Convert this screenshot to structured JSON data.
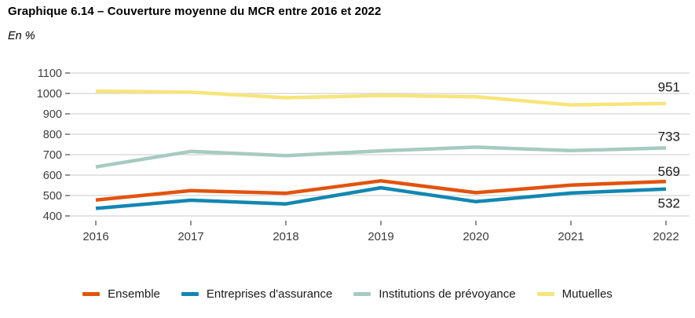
{
  "header": {
    "title": "Graphique 6.14 – Couverture moyenne du MCR entre 2016 et 2022",
    "unit_label": "En %"
  },
  "colors": {
    "ensemble": "#E2530D",
    "assurance": "#1287B2",
    "prevoyance": "#A6CBC0",
    "mutuelles": "#F7E57C",
    "gridline": "#D3D3D3",
    "tick": "#6E6E6E",
    "axis_text": "#3C3C3C",
    "end_label_text": "#1A1A1A"
  },
  "chart_data": {
    "type": "line",
    "title": "Couverture moyenne du MCR entre 2016 et 2022",
    "unit": "En %",
    "x": [
      2016,
      2017,
      2018,
      2019,
      2020,
      2021,
      2022
    ],
    "x_tick_labels": [
      "2016",
      "2017",
      "2018",
      "2019",
      "2020",
      "2021",
      "2022"
    ],
    "ylim": [
      400,
      1100
    ],
    "y_ticks": [
      400,
      500,
      600,
      700,
      800,
      900,
      1000,
      1100
    ],
    "y_tick_labels": [
      "400",
      "500",
      "600",
      "700",
      "800",
      "900",
      "1000",
      "1100"
    ],
    "grid": "horizontal",
    "legend_position": "bottom",
    "series": [
      {
        "name": "Mutuelles",
        "color_key": "mutuelles",
        "values": [
          1011,
          1006,
          979,
          990,
          984,
          944,
          951
        ],
        "end_label": "951",
        "end_label_offset": -15
      },
      {
        "name": "Institutions de prévoyance",
        "color_key": "prevoyance",
        "values": [
          640,
          716,
          695,
          719,
          737,
          720,
          733
        ],
        "end_label": "733",
        "end_label_offset": -9
      },
      {
        "name": "Entreprises d'assurance",
        "color_key": "assurance",
        "values": [
          437,
          477,
          459,
          538,
          470,
          512,
          532
        ],
        "end_label": "532",
        "end_label_offset": 24
      },
      {
        "name": "Ensemble",
        "color_key": "ensemble",
        "values": [
          478,
          524,
          511,
          572,
          514,
          551,
          569
        ],
        "end_label": "569",
        "end_label_offset": -7
      }
    ]
  },
  "legend": {
    "items": [
      {
        "label": "Ensemble",
        "color_key": "ensemble"
      },
      {
        "label": "Entreprises d'assurance",
        "color_key": "assurance"
      },
      {
        "label": "Institutions de prévoyance",
        "color_key": "prevoyance"
      },
      {
        "label": "Mutuelles",
        "color_key": "mutuelles"
      }
    ]
  }
}
